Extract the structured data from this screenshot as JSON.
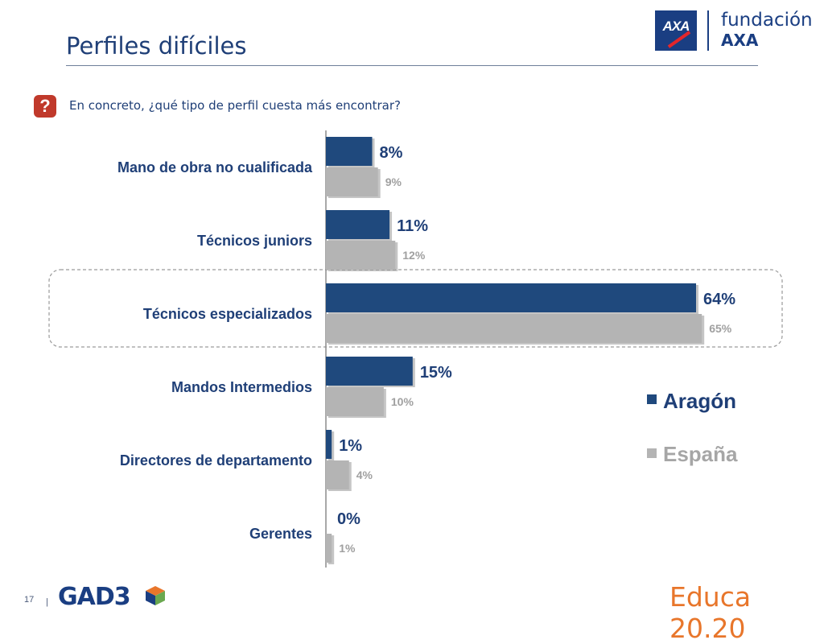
{
  "slide": {
    "title": "Perfiles difíciles",
    "question_icon": "question-mark-icon",
    "question": "En concreto, ¿qué tipo de perfil cuesta más encontrar?",
    "page_number": "17",
    "footer_separator": "|",
    "logo_gad3": "GAD3",
    "logo_educa": "Educa 20.20",
    "logo_axa_mark": "AXA",
    "logo_fundacion": "fundación",
    "logo_fundacion_axa": "AXA"
  },
  "colors": {
    "title": "#1f3f77",
    "aragon": "#1f497d",
    "espana": "#b4b4b4",
    "question_icon": "#c0392b",
    "educa": "#e8762b"
  },
  "chart_data": {
    "type": "bar",
    "orientation": "horizontal",
    "categories": [
      "Mano de obra no cualificada",
      "Técnicos juniors",
      "Técnicos especializados",
      "Mandos Intermedios",
      "Directores de departamento",
      "Gerentes"
    ],
    "series": [
      {
        "name": "Aragón",
        "values": [
          8,
          11,
          64,
          15,
          1,
          0
        ],
        "labels": [
          "8%",
          "11%",
          "64%",
          "15%",
          "1%",
          "0%"
        ]
      },
      {
        "name": "España",
        "values": [
          9,
          12,
          65,
          10,
          4,
          1
        ],
        "labels": [
          "9%",
          "12%",
          "65%",
          "10%",
          "4%",
          "1%"
        ]
      }
    ],
    "unit": "%",
    "xlim": [
      0,
      70
    ],
    "grid": false,
    "legend_position": "right",
    "highlighted_category": "Técnicos especializados"
  }
}
